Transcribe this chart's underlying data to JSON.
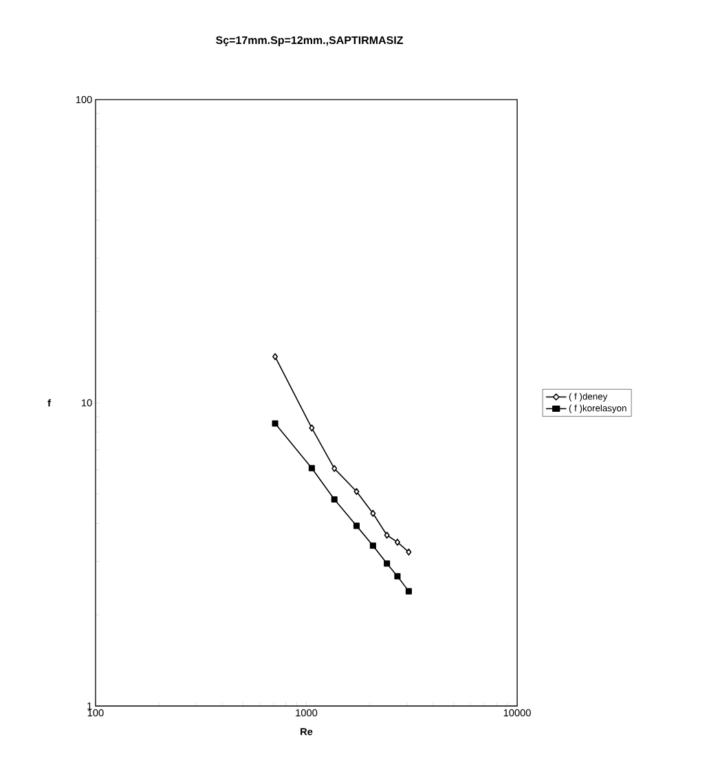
{
  "chart_data": {
    "type": "line",
    "title": "Sç=17mm.Sp=12mm.,SAPTIRMASIZ",
    "xlabel": "Re",
    "ylabel": "f",
    "log": "xy",
    "grid": false,
    "legend": "right",
    "line_style": "solid",
    "x": [
      711,
      1061,
      1358,
      1730,
      2070,
      2411,
      2704,
      3060
    ],
    "xlim": [
      100,
      10000
    ],
    "xticks": [
      100,
      1000,
      10000
    ],
    "ylim": [
      1,
      100
    ],
    "yticks": [
      1,
      10,
      100
    ],
    "series": [
      {
        "name": "( f )deney",
        "color": "#000000",
        "marker": "diamond",
        "values": [
          14.2,
          8.26,
          6.07,
          5.1,
          4.32,
          3.66,
          3.47,
          3.22
        ]
      },
      {
        "name": "( f )korelasyon",
        "color": "#000000",
        "marker": "square",
        "values": [
          8.55,
          6.09,
          4.8,
          3.93,
          3.38,
          2.95,
          2.68,
          2.39
        ]
      }
    ]
  }
}
